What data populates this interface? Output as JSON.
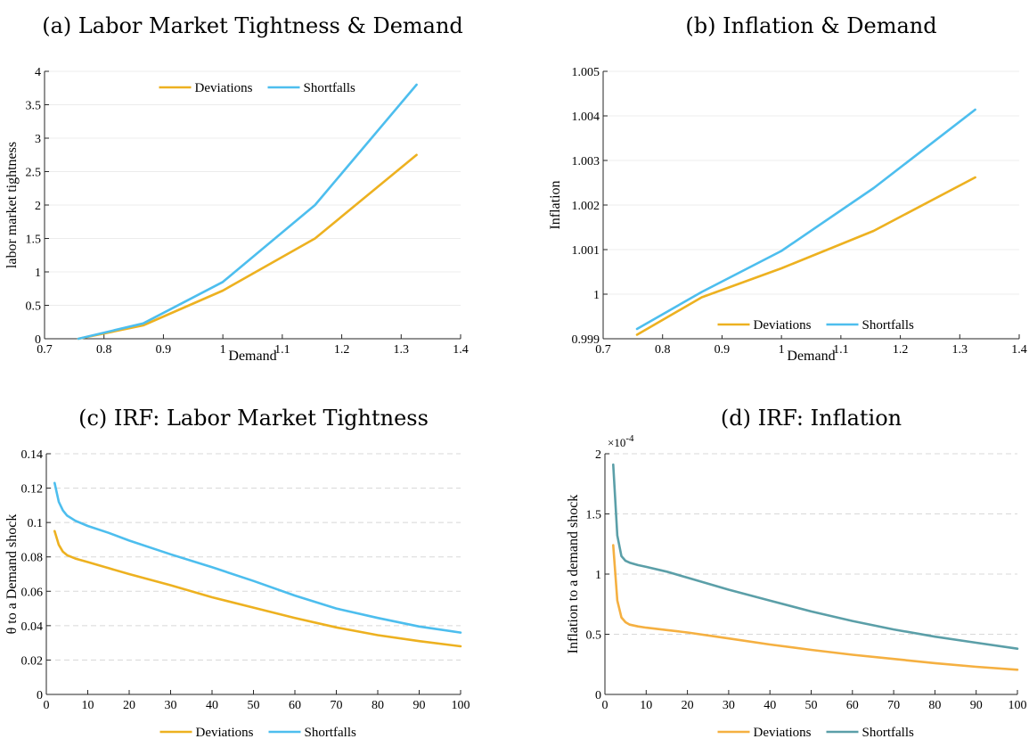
{
  "chart_data": [
    {
      "type": "line",
      "title": "(a) Labor Market Tightness & Demand",
      "xlabel": "Demand",
      "ylabel": "labor market tightness",
      "xlim": [
        0.7,
        1.4
      ],
      "ylim": [
        0,
        4
      ],
      "xticks": [
        "0.7",
        "0.8",
        "0.9",
        "1",
        "1.1",
        "1.2",
        "1.3",
        "1.4"
      ],
      "yticks": [
        "0",
        "0.5",
        "1",
        "1.5",
        "2",
        "2.5",
        "3",
        "3.5",
        "4"
      ],
      "grid": true,
      "legend": "top",
      "series": [
        {
          "name": "Deviations",
          "color": "#EDB120",
          "x": [
            0.757,
            0.866,
            1.0,
            1.155,
            1.326
          ],
          "y": [
            0.0,
            0.2,
            0.72,
            1.5,
            2.75
          ]
        },
        {
          "name": "Shortfalls",
          "color": "#4DBEEE",
          "x": [
            0.757,
            0.866,
            1.0,
            1.155,
            1.326
          ],
          "y": [
            0.0,
            0.23,
            0.85,
            2.0,
            3.8
          ]
        }
      ]
    },
    {
      "type": "line",
      "title": "(b) Inflation & Demand",
      "xlabel": "Demand",
      "ylabel": "Inflation",
      "xlim": [
        0.7,
        1.4
      ],
      "ylim": [
        0.999,
        1.005
      ],
      "xticks": [
        "0.7",
        "0.8",
        "0.9",
        "1",
        "1.1",
        "1.2",
        "1.3",
        "1.4"
      ],
      "yticks": [
        "0.999",
        "1",
        "1.001",
        "1.002",
        "1.003",
        "1.004",
        "1.005"
      ],
      "grid": true,
      "legend": "bottom",
      "series": [
        {
          "name": "Deviations",
          "color": "#EDB120",
          "x": [
            0.757,
            0.866,
            1.0,
            1.155,
            1.326
          ],
          "y": [
            0.99909,
            0.99993,
            1.00058,
            1.00142,
            1.00262
          ]
        },
        {
          "name": "Shortfalls",
          "color": "#4DBEEE",
          "x": [
            0.757,
            0.866,
            1.0,
            1.155,
            1.326
          ],
          "y": [
            0.99922,
            1.00005,
            1.00097,
            1.00238,
            1.00414
          ]
        }
      ]
    },
    {
      "type": "line",
      "title": "(c) IRF: Labor Market Tightness",
      "xlabel": "",
      "ylabel": "θ to a Demand shock",
      "xlim": [
        0,
        100
      ],
      "ylim": [
        0,
        0.14
      ],
      "xticks": [
        "0",
        "10",
        "20",
        "30",
        "40",
        "50",
        "60",
        "70",
        "80",
        "90",
        "100"
      ],
      "yticks": [
        "0",
        "0.02",
        "0.04",
        "0.06",
        "0.08",
        "0.1",
        "0.12",
        "0.14"
      ],
      "grid": "dashed",
      "legend": "bottom-outside",
      "series": [
        {
          "name": "Deviations",
          "color": "#EDB120",
          "x": [
            2,
            3,
            4,
            5,
            7,
            10,
            15,
            20,
            30,
            40,
            50,
            60,
            70,
            80,
            90,
            100
          ],
          "y": [
            0.095,
            0.087,
            0.083,
            0.081,
            0.079,
            0.077,
            0.0735,
            0.07,
            0.0635,
            0.0565,
            0.0505,
            0.0445,
            0.039,
            0.0345,
            0.031,
            0.028
          ]
        },
        {
          "name": "Shortfalls",
          "color": "#4DBEEE",
          "x": [
            2,
            3,
            4,
            5,
            7,
            10,
            15,
            20,
            30,
            40,
            50,
            60,
            70,
            80,
            90,
            100
          ],
          "y": [
            0.123,
            0.112,
            0.107,
            0.104,
            0.101,
            0.098,
            0.094,
            0.0895,
            0.0815,
            0.074,
            0.066,
            0.0575,
            0.05,
            0.0445,
            0.0395,
            0.036
          ]
        }
      ]
    },
    {
      "type": "line",
      "title": "(d) IRF: Inflation",
      "xlabel": "",
      "ylabel": "Inflation to a demand shock",
      "exponent_base": "×10",
      "exponent_power": "-4",
      "xlim": [
        0,
        100
      ],
      "ylim": [
        0,
        2
      ],
      "xticks": [
        "0",
        "10",
        "20",
        "30",
        "40",
        "50",
        "60",
        "70",
        "80",
        "90",
        "100"
      ],
      "yticks": [
        "0",
        "0.5",
        "1",
        "1.5",
        "2"
      ],
      "grid": "dashed",
      "legend": "bottom-outside",
      "series": [
        {
          "name": "Deviations",
          "color": "#F5B041",
          "x": [
            2,
            3,
            4,
            5,
            6,
            8,
            10,
            15,
            20,
            30,
            40,
            50,
            60,
            70,
            80,
            90,
            100
          ],
          "y": [
            1.24,
            0.78,
            0.64,
            0.6,
            0.58,
            0.565,
            0.555,
            0.535,
            0.515,
            0.465,
            0.415,
            0.37,
            0.33,
            0.295,
            0.26,
            0.23,
            0.205
          ]
        },
        {
          "name": "Shortfalls",
          "color": "#5B9FA8",
          "x": [
            2,
            3,
            4,
            5,
            6,
            8,
            10,
            15,
            20,
            30,
            40,
            50,
            60,
            70,
            80,
            90,
            100
          ],
          "y": [
            1.91,
            1.32,
            1.15,
            1.11,
            1.095,
            1.075,
            1.06,
            1.02,
            0.97,
            0.87,
            0.78,
            0.69,
            0.61,
            0.54,
            0.48,
            0.43,
            0.38
          ]
        }
      ]
    }
  ]
}
